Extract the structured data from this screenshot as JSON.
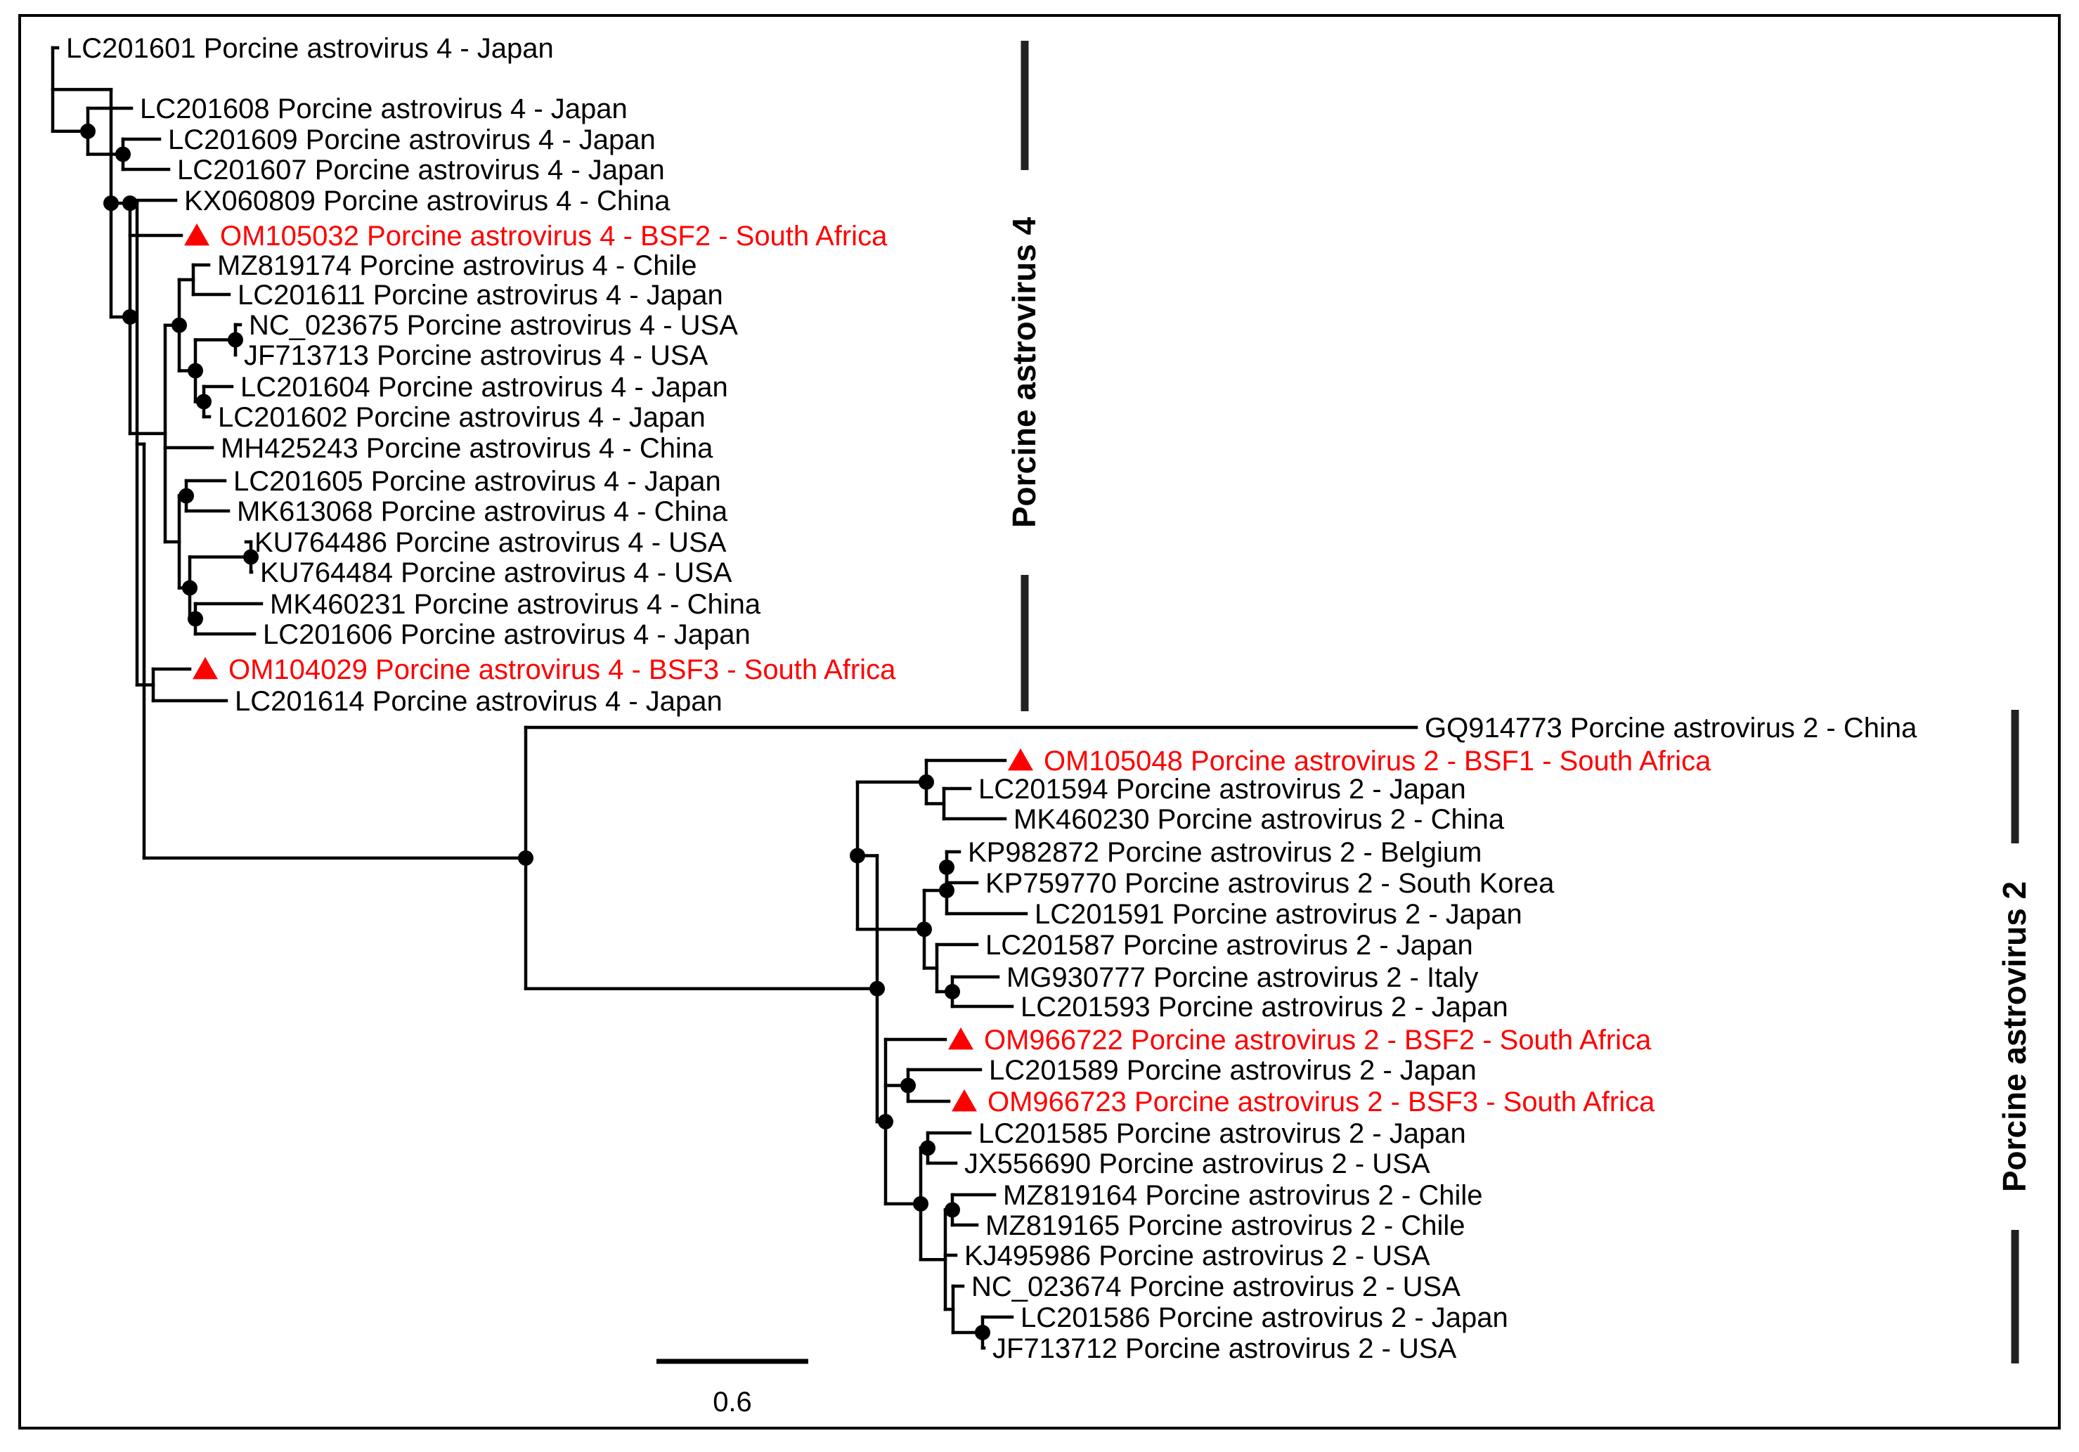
{
  "figure": {
    "type": "phylogenetic-tree",
    "highlight_color": "#ff0000",
    "text_color": "#000000",
    "node_marker": "filled-circle",
    "highlight_marker": "red-triangle"
  },
  "clades": {
    "pastv4": {
      "label": "Porcine astrovirus 4"
    },
    "pastv2": {
      "label": "Porcine astrovirus 2"
    }
  },
  "scale_bar": {
    "label": "0.6",
    "value": 0.6
  },
  "taxa": [
    {
      "label": "LC201601 Porcine astrovirus 4 - Japan",
      "highlight": false
    },
    {
      "label": "LC201608 Porcine astrovirus 4 - Japan",
      "highlight": false
    },
    {
      "label": "LC201609 Porcine astrovirus 4 - Japan",
      "highlight": false
    },
    {
      "label": "LC201607 Porcine astrovirus 4 - Japan",
      "highlight": false
    },
    {
      "label": "KX060809 Porcine astrovirus 4 - China",
      "highlight": false
    },
    {
      "label": "OM105032 Porcine astrovirus 4 - BSF2 - South Africa",
      "highlight": true
    },
    {
      "label": "MZ819174 Porcine astrovirus 4 - Chile",
      "highlight": false
    },
    {
      "label": "LC201611 Porcine astrovirus 4 - Japan",
      "highlight": false
    },
    {
      "label": "NC_023675 Porcine astrovirus 4 - USA",
      "highlight": false
    },
    {
      "label": "JF713713 Porcine astrovirus 4 - USA",
      "highlight": false
    },
    {
      "label": "LC201604 Porcine astrovirus 4 - Japan",
      "highlight": false
    },
    {
      "label": "LC201602 Porcine astrovirus 4 - Japan",
      "highlight": false
    },
    {
      "label": "MH425243 Porcine astrovirus 4 - China",
      "highlight": false
    },
    {
      "label": "LC201605 Porcine astrovirus 4 - Japan",
      "highlight": false
    },
    {
      "label": "MK613068 Porcine astrovirus 4 - China",
      "highlight": false
    },
    {
      "label": "KU764486 Porcine astrovirus 4 - USA",
      "highlight": false
    },
    {
      "label": "KU764484 Porcine astrovirus 4 - USA",
      "highlight": false
    },
    {
      "label": "MK460231 Porcine astrovirus 4 - China",
      "highlight": false
    },
    {
      "label": "LC201606 Porcine astrovirus 4 - Japan",
      "highlight": false
    },
    {
      "label": "OM104029 Porcine astrovirus 4 - BSF3 - South Africa",
      "highlight": true
    },
    {
      "label": "LC201614 Porcine astrovirus 4 - Japan",
      "highlight": false
    },
    {
      "label": "GQ914773 Porcine astrovirus 2 - China",
      "highlight": false
    },
    {
      "label": "OM105048 Porcine astrovirus 2 - BSF1 - South Africa",
      "highlight": true
    },
    {
      "label": "LC201594 Porcine astrovirus 2 - Japan",
      "highlight": false
    },
    {
      "label": "MK460230 Porcine astrovirus 2 - China",
      "highlight": false
    },
    {
      "label": "KP982872 Porcine astrovirus 2 - Belgium",
      "highlight": false
    },
    {
      "label": "KP759770 Porcine astrovirus 2 - South Korea",
      "highlight": false
    },
    {
      "label": "LC201591 Porcine astrovirus 2 - Japan",
      "highlight": false
    },
    {
      "label": "LC201587 Porcine astrovirus 2 - Japan",
      "highlight": false
    },
    {
      "label": "MG930777 Porcine astrovirus 2 - Italy",
      "highlight": false
    },
    {
      "label": "LC201593 Porcine astrovirus 2 - Japan",
      "highlight": false
    },
    {
      "label": "OM966722 Porcine astrovirus 2 - BSF2 - South Africa",
      "highlight": true
    },
    {
      "label": "LC201589 Porcine astrovirus 2 - Japan",
      "highlight": false
    },
    {
      "label": "OM966723 Porcine astrovirus 2 - BSF3 - South Africa",
      "highlight": true
    },
    {
      "label": "LC201585 Porcine astrovirus 2 - Japan",
      "highlight": false
    },
    {
      "label": "JX556690 Porcine astrovirus 2 - USA",
      "highlight": false
    },
    {
      "label": "MZ819164 Porcine astrovirus 2 - Chile",
      "highlight": false
    },
    {
      "label": "MZ819165 Porcine astrovirus 2 - Chile",
      "highlight": false
    },
    {
      "label": "KJ495986 Porcine astrovirus 2 - USA",
      "highlight": false
    },
    {
      "label": "NC_023674 Porcine astrovirus 2 - USA",
      "highlight": false
    },
    {
      "label": "LC201586 Porcine astrovirus 2 - Japan",
      "highlight": false
    },
    {
      "label": "JF713712 Porcine astrovirus 2 - USA",
      "highlight": false
    }
  ]
}
